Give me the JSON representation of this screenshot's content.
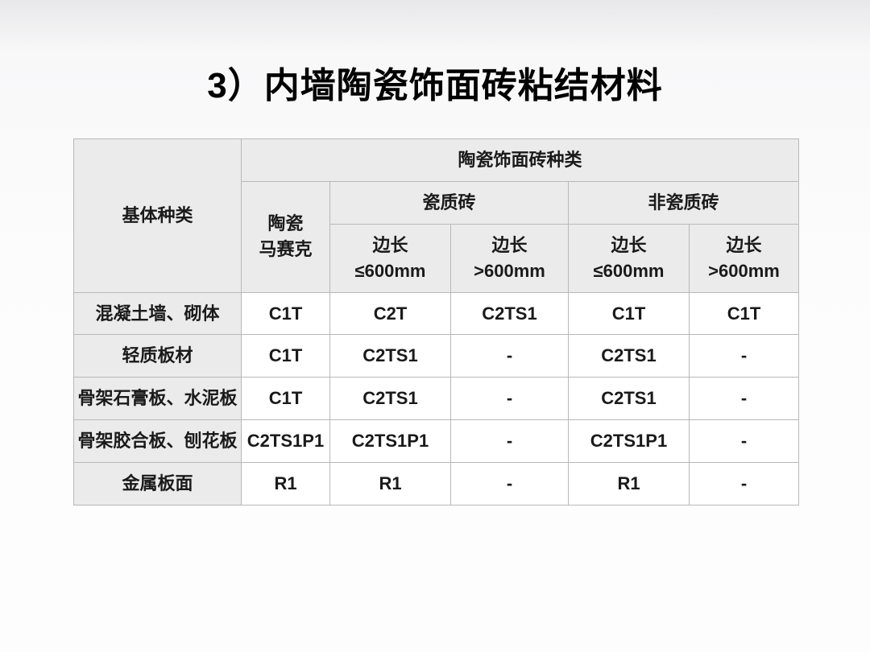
{
  "title": "3）内墙陶瓷饰面砖粘结材料",
  "table": {
    "header": {
      "row_label": "基体种类",
      "top": "陶瓷饰面砖种类",
      "col1": "陶瓷\n马赛克",
      "group1": "瓷质砖",
      "group2": "非瓷质砖",
      "sub_g1c1": "边长\n≤600mm",
      "sub_g1c2": "边长\n>600mm",
      "sub_g2c1": "边长\n≤600mm",
      "sub_g2c2": "边长\n>600mm"
    },
    "rows": [
      {
        "label": "混凝土墙、砌体",
        "cells": [
          "C1T",
          "C2T",
          "C2TS1",
          "C1T",
          "C1T"
        ]
      },
      {
        "label": "轻质板材",
        "cells": [
          "C1T",
          "C2TS1",
          "-",
          "C2TS1",
          "-"
        ]
      },
      {
        "label": "骨架石膏板、水泥板",
        "cells": [
          "C1T",
          "C2TS1",
          "-",
          "C2TS1",
          "-"
        ]
      },
      {
        "label": "骨架胶合板、刨花板",
        "cells": [
          "C2TS1P1",
          "C2TS1P1",
          "-",
          "C2TS1P1",
          "-"
        ]
      },
      {
        "label": "金属板面",
        "cells": [
          "R1",
          "R1",
          "-",
          "R1",
          "-"
        ]
      }
    ]
  },
  "colors": {
    "header_bg": "#ebebeb",
    "cell_bg": "#ffffff",
    "border": "#b8b8b8",
    "text": "#1a1a1a"
  }
}
